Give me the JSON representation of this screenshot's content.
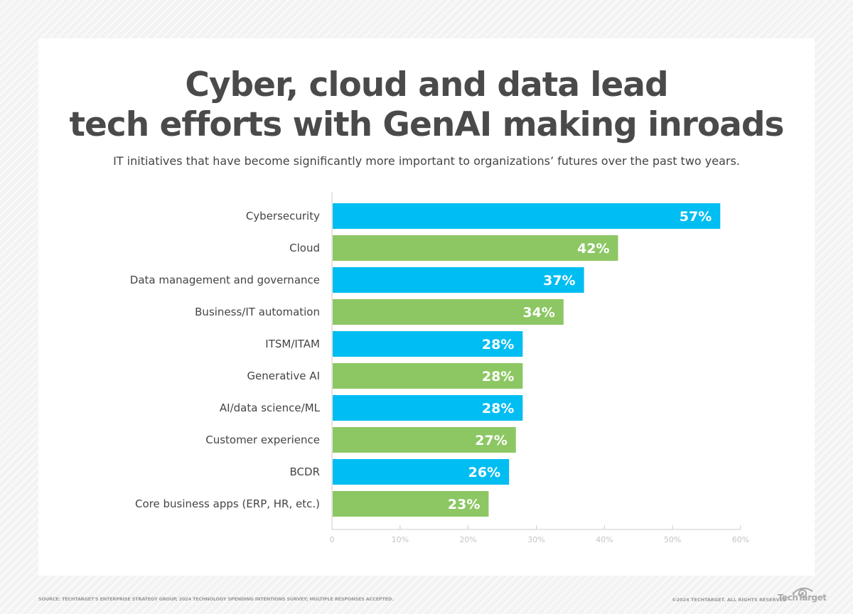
{
  "title_line1": "Cyber, cloud and data lead",
  "title_line2": "tech efforts with GenAI making inroads",
  "subtitle": "IT initiatives that have become significantly more important to organizations’ futures over the past two years.",
  "footer": {
    "source": "SOURCE: TECHTARGET'S ENTERPRISE STRATEGY GROUP, 2024 TECHNOLOGY SPENDING INTENTIONS SURVEY; MULTIPLE RESPONSES ACCEPTED.",
    "copyright": "©2024 TECHTARGET. ALL RIGHTS RESERVED",
    "logo": "TechTarget"
  },
  "colors": {
    "blue": "#00bdf2",
    "green": "#8cc763"
  },
  "chart_data": {
    "type": "bar",
    "orientation": "horizontal",
    "title": "Cyber, cloud and data lead tech efforts with GenAI making inroads",
    "subtitle": "IT initiatives that have become significantly more important to organizations’ futures over the past two years.",
    "categories": [
      "Cybersecurity",
      "Cloud",
      "Data management and governance",
      "Business/IT automation",
      "ITSM/ITAM",
      "Generative AI",
      "AI/data science/ML",
      "Customer experience",
      "BCDR",
      "Core business apps (ERP, HR, etc.)"
    ],
    "values": [
      57,
      42,
      37,
      34,
      28,
      28,
      28,
      27,
      26,
      23
    ],
    "data_labels": [
      "57%",
      "42%",
      "37%",
      "34%",
      "28%",
      "28%",
      "28%",
      "27%",
      "26%",
      "23%"
    ],
    "bar_colors": [
      "#00bdf2",
      "#8cc763",
      "#00bdf2",
      "#8cc763",
      "#00bdf2",
      "#8cc763",
      "#00bdf2",
      "#8cc763",
      "#00bdf2",
      "#8cc763"
    ],
    "xlim": [
      0,
      60
    ],
    "xticks": [
      "0",
      "10%",
      "20%",
      "30%",
      "40%",
      "50%",
      "60%"
    ],
    "tick_values": [
      0,
      10,
      20,
      30,
      40,
      50,
      60
    ],
    "grid": false,
    "xlabel": "",
    "ylabel": ""
  }
}
